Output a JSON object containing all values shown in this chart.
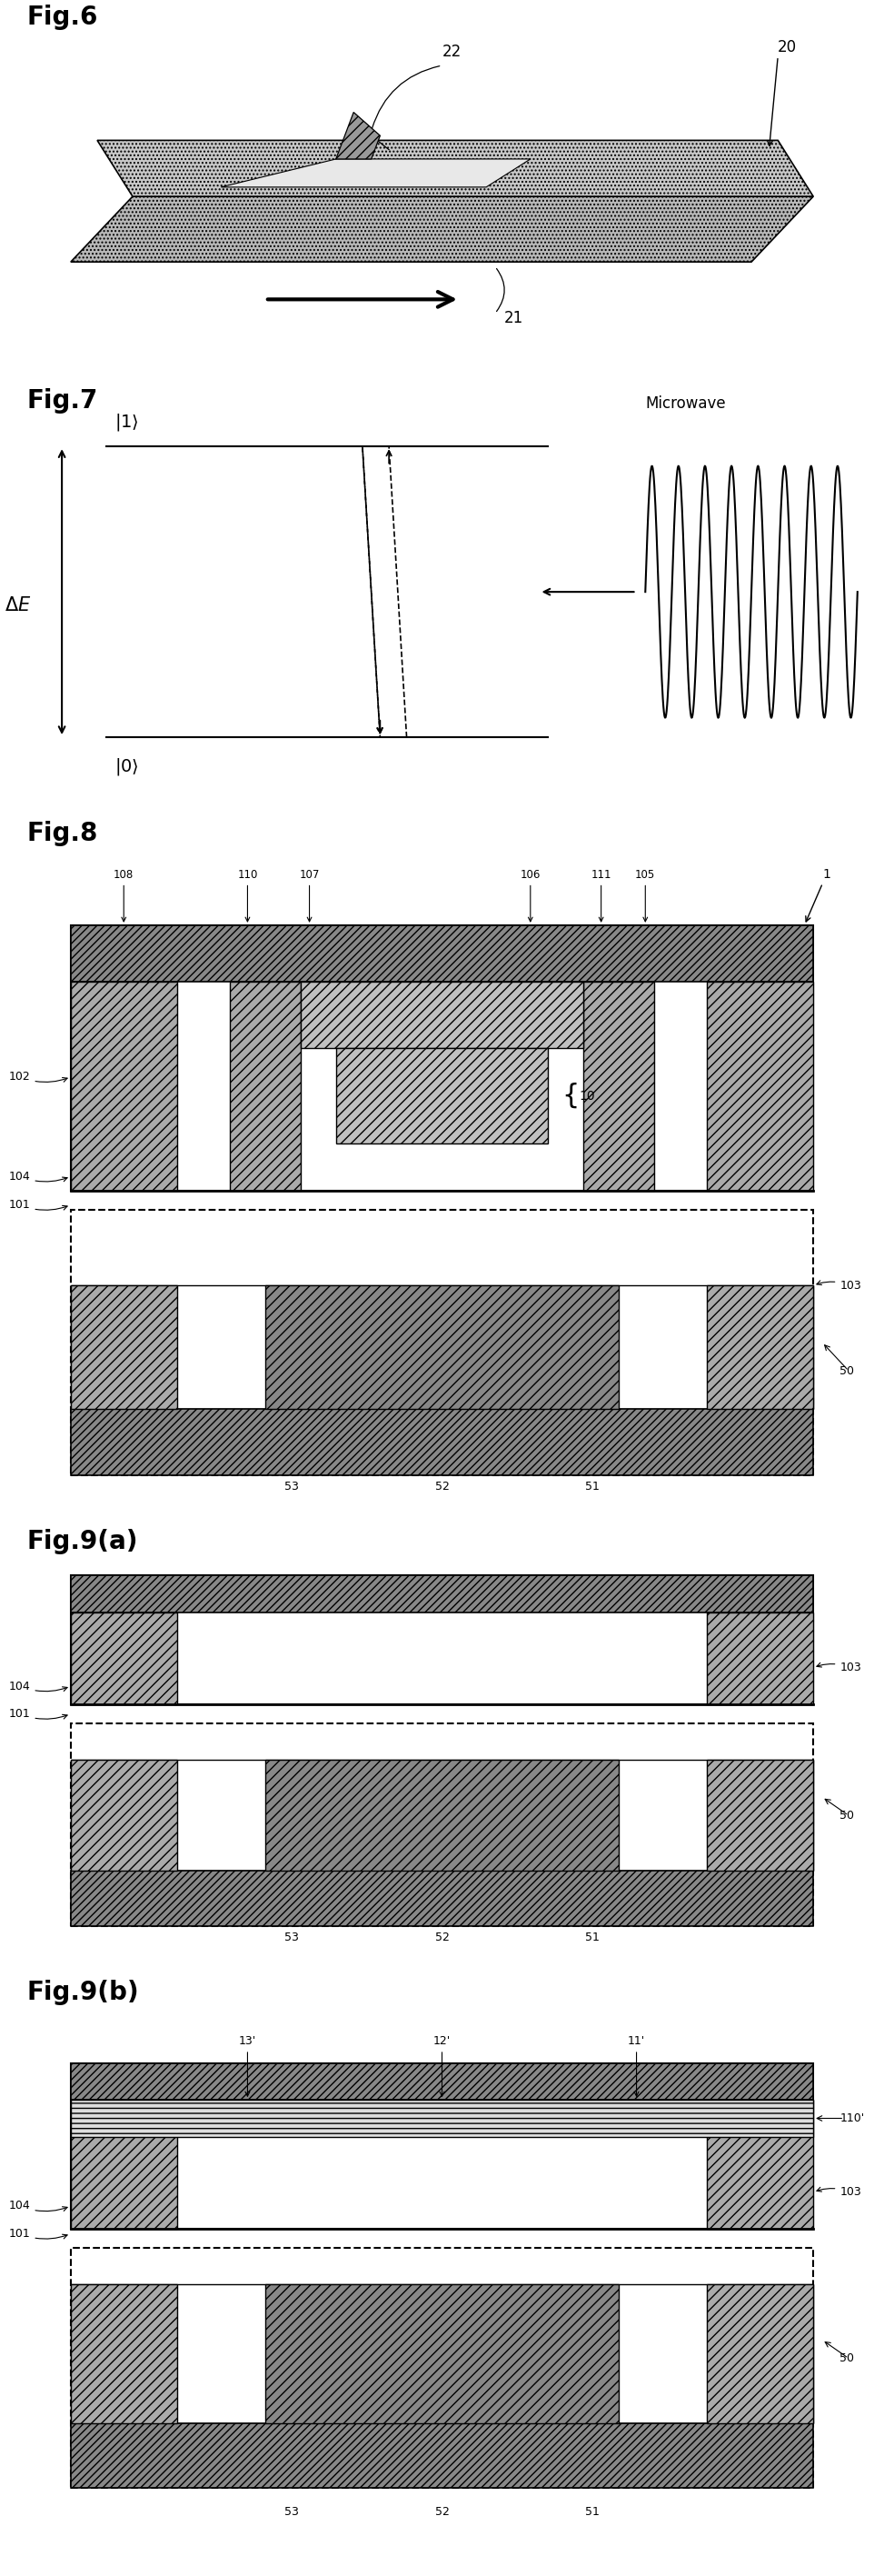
{
  "background": "#ffffff",
  "fig6": {
    "label": "Fig.6",
    "slab_hatch": "....",
    "slab_fc": "#c8c8c8",
    "arrow_label": "21",
    "labels": [
      "22",
      "20"
    ]
  },
  "fig7": {
    "label": "Fig.7",
    "upper_state": "|1>",
    "lower_state": "|0>",
    "delta_e": "ΔE",
    "microwave": "Microwave"
  },
  "fig8": {
    "label": "Fig.8",
    "top_labels": [
      "108",
      "110",
      "107",
      "106",
      "111",
      "105"
    ],
    "left_labels": [
      "102",
      "104",
      "101"
    ],
    "right_labels": [
      "103",
      "50"
    ],
    "bottom_labels": [
      "53",
      "52",
      "51"
    ],
    "corner_label": "1",
    "qubit_label": "10"
  },
  "fig9a": {
    "label": "Fig.9(a)",
    "left_labels": [
      "104",
      "101"
    ],
    "right_labels": [
      "103",
      "50"
    ],
    "bottom_labels": [
      "53",
      "52",
      "51"
    ]
  },
  "fig9b": {
    "label": "Fig.9(b)",
    "top_labels": [
      "13'",
      "12'",
      "11'"
    ],
    "thin_layer_label": "110'",
    "left_labels": [
      "104",
      "101"
    ],
    "right_labels": [
      "103",
      "50"
    ],
    "bottom_labels": [
      "53",
      "52",
      "51"
    ]
  }
}
